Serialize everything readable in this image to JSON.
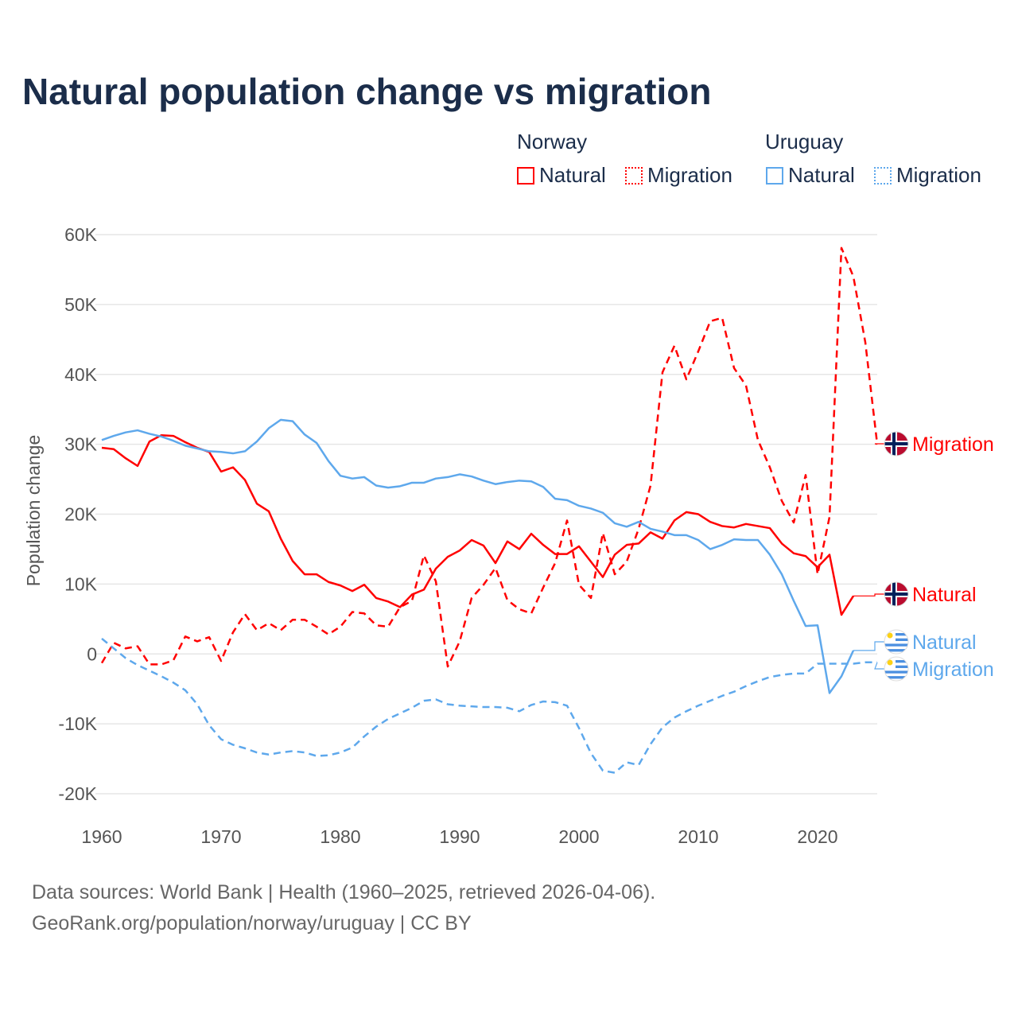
{
  "title": "Natural population change vs migration",
  "legend": {
    "groups": [
      {
        "country": "Norway",
        "items": [
          "Natural",
          "Migration"
        ],
        "color": "#ff0000"
      },
      {
        "country": "Uruguay",
        "items": [
          "Natural",
          "Migration"
        ],
        "color": "#5ea8ec"
      }
    ]
  },
  "footer": {
    "line1": "Data sources: World Bank | Health (1960–2025, retrieved 2026-04-06).",
    "line2": "GeoRank.org/population/norway/uruguay | CC BY"
  },
  "chart_data": {
    "type": "line",
    "title": "Natural population change vs migration",
    "xlabel": "",
    "ylabel": "Population change",
    "xlim": [
      1960,
      2025
    ],
    "ylim": [
      -20000,
      60000
    ],
    "yticks": [
      -20000,
      -10000,
      0,
      10000,
      20000,
      30000,
      40000,
      50000,
      60000
    ],
    "ytick_labels": [
      "-20K",
      "-10K",
      "0",
      "10K",
      "20K",
      "30K",
      "40K",
      "50K",
      "60K"
    ],
    "xticks": [
      1960,
      1970,
      1980,
      1990,
      2000,
      2010,
      2020
    ],
    "xtick_labels": [
      "1960",
      "1970",
      "1980",
      "1990",
      "2000",
      "2010",
      "2020"
    ],
    "grid": true,
    "legend_position": "top-right",
    "series": [
      {
        "name": "Norway Natural",
        "end_label": "Natural",
        "color": "#ff0000",
        "dash": "solid",
        "flag": "norway",
        "start_year": 1960,
        "values": [
          29.5,
          29.3,
          28,
          26.9,
          30.4,
          31.3,
          31.2,
          30.3,
          29.5,
          28.9,
          26.1,
          26.7,
          24.9,
          21.5,
          20.4,
          16.5,
          13.3,
          11.4,
          11.4,
          10.3,
          9.8,
          9,
          9.9,
          8,
          7.5,
          6.7,
          8.5,
          9.2,
          12.2,
          13.9,
          14.8,
          16.3,
          15.5,
          13,
          16.1,
          15,
          17.2,
          15.6,
          14.3,
          14.3,
          15.4,
          13.2,
          11,
          14.2,
          15.6,
          15.8,
          17.4,
          16.5,
          19.1,
          20.3,
          20,
          18.9,
          18.3,
          18.1,
          18.6,
          18.3,
          18,
          15.8,
          14.4,
          14,
          12.4,
          14.2,
          5.6,
          8.3
        ]
      },
      {
        "name": "Norway Migration",
        "end_label": "Migration",
        "color": "#ff0000",
        "dash": "dashed",
        "flag": "norway",
        "start_year": 1960,
        "values": [
          -1.3,
          1.6,
          0.8,
          1.1,
          -1.5,
          -1.5,
          -0.9,
          2.5,
          1.8,
          2.4,
          -1,
          3.1,
          5.7,
          3.4,
          4.4,
          3.4,
          4.9,
          4.9,
          3.9,
          2.8,
          3.9,
          6,
          5.8,
          4.1,
          3.9,
          6.7,
          7.6,
          14.1,
          10.4,
          -1.8,
          1.8,
          8,
          9.9,
          12.3,
          7.7,
          6.4,
          5.8,
          9.5,
          13,
          19.1,
          9.9,
          8,
          17.3,
          11.4,
          13.2,
          17.9,
          24.1,
          40.3,
          44.1,
          39.3,
          43.3,
          47.6,
          48.1,
          40.9,
          38.4,
          30.6,
          26.7,
          21.9,
          18.8,
          25.6,
          11.4,
          19.6,
          58.1,
          54,
          44.6,
          30
        ]
      },
      {
        "name": "Uruguay Natural",
        "end_label": "Natural",
        "color": "#5ea8ec",
        "dash": "solid",
        "flag": "uruguay",
        "start_year": 1960,
        "values": [
          30.6,
          31.2,
          31.7,
          32,
          31.5,
          31.1,
          30.5,
          29.8,
          29.4,
          29,
          28.9,
          28.7,
          29,
          30.4,
          32.3,
          33.5,
          33.3,
          31.4,
          30.2,
          27.6,
          25.5,
          25.1,
          25.3,
          24.1,
          23.8,
          24,
          24.5,
          24.5,
          25.1,
          25.3,
          25.7,
          25.4,
          24.8,
          24.3,
          24.6,
          24.8,
          24.7,
          23.9,
          22.2,
          22,
          21.2,
          20.8,
          20.2,
          18.7,
          18.2,
          18.9,
          17.9,
          17.5,
          17,
          17,
          16.3,
          15,
          15.6,
          16.4,
          16.3,
          16.3,
          14.2,
          11.4,
          7.6,
          4,
          4.1,
          -5.6,
          -3.2,
          0.5
        ]
      },
      {
        "name": "Uruguay Migration",
        "end_label": "Migration",
        "color": "#5ea8ec",
        "dash": "dashed",
        "flag": "uruguay",
        "start_year": 1960,
        "values": [
          2.2,
          0.8,
          -0.6,
          -1.6,
          -2.4,
          -3.2,
          -4.1,
          -5.2,
          -7.2,
          -10.2,
          -12.2,
          -13,
          -13.5,
          -14.1,
          -14.4,
          -14.1,
          -13.9,
          -14.1,
          -14.6,
          -14.5,
          -14.1,
          -13.4,
          -11.8,
          -10.4,
          -9.3,
          -8.5,
          -7.7,
          -6.7,
          -6.5,
          -7.2,
          -7.4,
          -7.5,
          -7.6,
          -7.6,
          -7.7,
          -8.2,
          -7.3,
          -6.8,
          -6.9,
          -7.4,
          -10.6,
          -14.2,
          -16.7,
          -17,
          -15.5,
          -15.9,
          -12.9,
          -10.5,
          -9.1,
          -8.2,
          -7.4,
          -6.7,
          -6,
          -5.4,
          -4.6,
          -3.9,
          -3.3,
          -3,
          -2.8,
          -2.8,
          -1.4,
          -1.4,
          -1.4,
          -1.4,
          -1.2,
          -1.2
        ]
      }
    ],
    "value_units": "thousands"
  }
}
